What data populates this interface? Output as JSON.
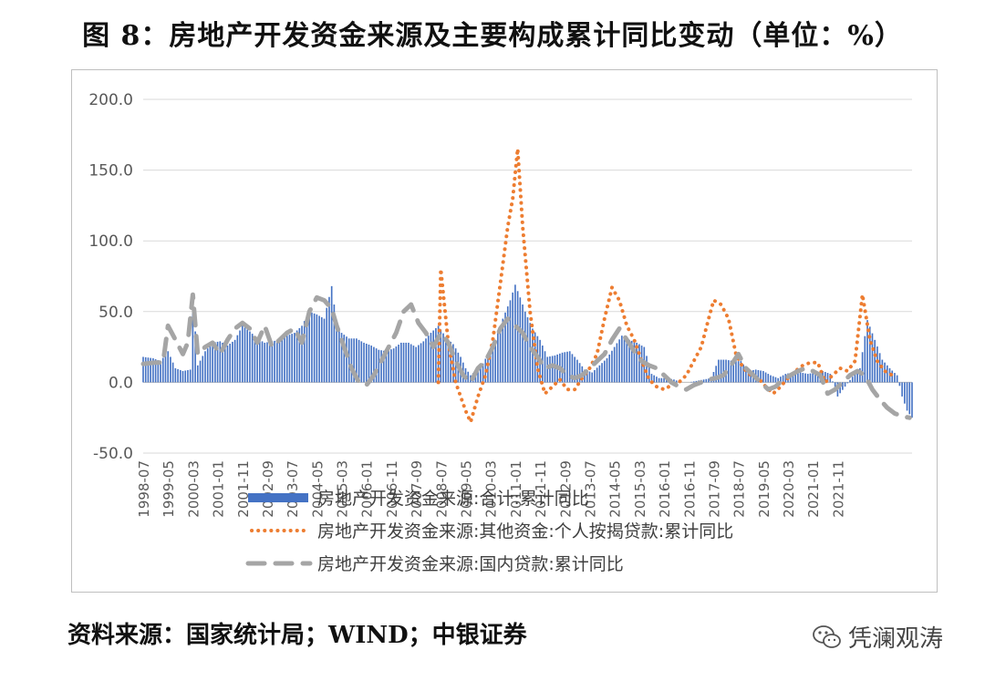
{
  "header": {
    "title": "图 8：房地产开发资金来源及主要构成累计同比变动（单位：%）"
  },
  "footer": {
    "source": "资料来源：国家统计局；WIND；中银证券",
    "watermark": "凭澜观涛"
  },
  "chart_data": {
    "type": "bar+line",
    "title": "",
    "xlabel": "",
    "ylabel": "",
    "ylim": [
      -50,
      200
    ],
    "yticks": [
      "200.0",
      "150.0",
      "100.0",
      "50.0",
      "0.0",
      "-50.0"
    ],
    "xticks": [
      "1998-07",
      "1999-05",
      "2000-03",
      "2001-01",
      "2001-11",
      "2002-09",
      "2003-07",
      "2004-05",
      "2005-03",
      "2006-01",
      "2006-11",
      "2007-09",
      "2008-07",
      "2009-05",
      "2010-03",
      "2011-01",
      "2011-11",
      "2012-09",
      "2013-07",
      "2014-05",
      "2015-03",
      "2016-01",
      "2016-11",
      "2017-09",
      "2018-07",
      "2019-05",
      "2020-03",
      "2021-01",
      "2021-11"
    ],
    "grid": true,
    "legend_position": "bottom",
    "series": [
      {
        "name": "房地产开发资金来源:合计:累计同比",
        "style": "bar",
        "color": "#4472C4",
        "points": [
          [
            0,
            18
          ],
          [
            4,
            17
          ],
          [
            7,
            15
          ],
          [
            10,
            22
          ],
          [
            13,
            10
          ],
          [
            16,
            8
          ],
          [
            19,
            9
          ],
          [
            20,
            60
          ],
          [
            22,
            12
          ],
          [
            25,
            22
          ],
          [
            28,
            28
          ],
          [
            31,
            29
          ],
          [
            34,
            26
          ],
          [
            37,
            30
          ],
          [
            40,
            40
          ],
          [
            43,
            36
          ],
          [
            46,
            31
          ],
          [
            49,
            28
          ],
          [
            52,
            29
          ],
          [
            55,
            30
          ],
          [
            58,
            33
          ],
          [
            61,
            35
          ],
          [
            64,
            40
          ],
          [
            67,
            50
          ],
          [
            70,
            48
          ],
          [
            73,
            45
          ],
          [
            76,
            68
          ],
          [
            78,
            42
          ],
          [
            80,
            35
          ],
          [
            83,
            31
          ],
          [
            86,
            31
          ],
          [
            89,
            28
          ],
          [
            92,
            26
          ],
          [
            95,
            23
          ],
          [
            98,
            22
          ],
          [
            101,
            24
          ],
          [
            104,
            28
          ],
          [
            107,
            28
          ],
          [
            110,
            25
          ],
          [
            113,
            29
          ],
          [
            116,
            35
          ],
          [
            119,
            40
          ],
          [
            122,
            32
          ],
          [
            125,
            27
          ],
          [
            128,
            18
          ],
          [
            130,
            10
          ],
          [
            132,
            5
          ],
          [
            134,
            8
          ],
          [
            136,
            10
          ],
          [
            139,
            20
          ],
          [
            142,
            30
          ],
          [
            145,
            45
          ],
          [
            148,
            58
          ],
          [
            150,
            69
          ],
          [
            152,
            60
          ],
          [
            154,
            50
          ],
          [
            157,
            38
          ],
          [
            160,
            30
          ],
          [
            163,
            18
          ],
          [
            166,
            19
          ],
          [
            169,
            21
          ],
          [
            172,
            22
          ],
          [
            175,
            16
          ],
          [
            178,
            9
          ],
          [
            181,
            7
          ],
          [
            184,
            12
          ],
          [
            187,
            17
          ],
          [
            190,
            25
          ],
          [
            193,
            33
          ],
          [
            196,
            30
          ],
          [
            199,
            28
          ],
          [
            202,
            25
          ],
          [
            205,
            6
          ],
          [
            208,
            3
          ],
          [
            211,
            3
          ],
          [
            214,
            2
          ],
          [
            217,
            0
          ],
          [
            220,
            0
          ],
          [
            223,
            1
          ],
          [
            226,
            2
          ],
          [
            229,
            3
          ],
          [
            232,
            16
          ],
          [
            235,
            16
          ],
          [
            238,
            15
          ],
          [
            241,
            15
          ],
          [
            244,
            8
          ],
          [
            247,
            9
          ],
          [
            250,
            8
          ],
          [
            253,
            5
          ],
          [
            256,
            3
          ],
          [
            259,
            6
          ],
          [
            262,
            7
          ],
          [
            265,
            7
          ],
          [
            268,
            6
          ],
          [
            271,
            7
          ],
          [
            274,
            8
          ],
          [
            277,
            6
          ],
          [
            280,
            -10
          ],
          [
            283,
            -3
          ],
          [
            286,
            4
          ],
          [
            289,
            10
          ],
          [
            292,
            44
          ],
          [
            295,
            30
          ],
          [
            298,
            16
          ],
          [
            301,
            10
          ],
          [
            304,
            5
          ],
          [
            306,
            -10
          ],
          [
            308,
            -20
          ],
          [
            310,
            -25
          ]
        ]
      },
      {
        "name": "房地产开发资金来源:其他资金:个人按揭贷款:累计同比",
        "style": "dotted",
        "color": "#ED7D31",
        "points": [
          [
            119,
            0
          ],
          [
            120,
            80
          ],
          [
            123,
            28
          ],
          [
            126,
            0
          ],
          [
            130,
            -20
          ],
          [
            132,
            -28
          ],
          [
            135,
            -10
          ],
          [
            138,
            5
          ],
          [
            141,
            30
          ],
          [
            144,
            70
          ],
          [
            147,
            110
          ],
          [
            149,
            130
          ],
          [
            151,
            165
          ],
          [
            153,
            110
          ],
          [
            156,
            50
          ],
          [
            159,
            10
          ],
          [
            162,
            -8
          ],
          [
            165,
            -3
          ],
          [
            168,
            2
          ],
          [
            171,
            -5
          ],
          [
            174,
            -5
          ],
          [
            177,
            3
          ],
          [
            180,
            10
          ],
          [
            183,
            20
          ],
          [
            186,
            45
          ],
          [
            189,
            67
          ],
          [
            192,
            58
          ],
          [
            195,
            40
          ],
          [
            198,
            30
          ],
          [
            201,
            15
          ],
          [
            204,
            2
          ],
          [
            207,
            -3
          ],
          [
            210,
            -5
          ],
          [
            213,
            -2
          ],
          [
            216,
            0
          ],
          [
            219,
            5
          ],
          [
            222,
            15
          ],
          [
            225,
            25
          ],
          [
            228,
            45
          ],
          [
            230,
            58
          ],
          [
            233,
            55
          ],
          [
            236,
            45
          ],
          [
            239,
            20
          ],
          [
            242,
            10
          ],
          [
            245,
            5
          ],
          [
            248,
            3
          ],
          [
            251,
            -3
          ],
          [
            254,
            -8
          ],
          [
            257,
            -3
          ],
          [
            260,
            3
          ],
          [
            263,
            8
          ],
          [
            266,
            12
          ],
          [
            269,
            14
          ],
          [
            272,
            14
          ],
          [
            275,
            0
          ],
          [
            278,
            5
          ],
          [
            281,
            10
          ],
          [
            284,
            8
          ],
          [
            287,
            15
          ],
          [
            290,
            62
          ],
          [
            293,
            30
          ],
          [
            296,
            15
          ],
          [
            299,
            8
          ],
          [
            302,
            5
          ]
        ]
      },
      {
        "name": "房地产开发资金来源:国内贷款:累计同比",
        "style": "dashed",
        "color": "#A5A5A5",
        "points": [
          [
            0,
            13
          ],
          [
            5,
            14
          ],
          [
            8,
            14
          ],
          [
            10,
            40
          ],
          [
            13,
            30
          ],
          [
            16,
            20
          ],
          [
            18,
            28
          ],
          [
            20,
            62
          ],
          [
            22,
            20
          ],
          [
            25,
            25
          ],
          [
            28,
            28
          ],
          [
            31,
            20
          ],
          [
            34,
            30
          ],
          [
            37,
            38
          ],
          [
            40,
            42
          ],
          [
            43,
            38
          ],
          [
            46,
            28
          ],
          [
            49,
            40
          ],
          [
            52,
            25
          ],
          [
            55,
            30
          ],
          [
            58,
            35
          ],
          [
            61,
            38
          ],
          [
            64,
            28
          ],
          [
            67,
            50
          ],
          [
            70,
            60
          ],
          [
            73,
            58
          ],
          [
            76,
            52
          ],
          [
            78,
            40
          ],
          [
            81,
            25
          ],
          [
            84,
            10
          ],
          [
            87,
            0
          ],
          [
            90,
            -2
          ],
          [
            93,
            5
          ],
          [
            96,
            15
          ],
          [
            99,
            25
          ],
          [
            102,
            35
          ],
          [
            105,
            50
          ],
          [
            108,
            55
          ],
          [
            111,
            42
          ],
          [
            114,
            35
          ],
          [
            117,
            25
          ],
          [
            120,
            35
          ],
          [
            123,
            28
          ],
          [
            126,
            15
          ],
          [
            129,
            5
          ],
          [
            132,
            0
          ],
          [
            135,
            10
          ],
          [
            138,
            15
          ],
          [
            141,
            25
          ],
          [
            144,
            38
          ],
          [
            147,
            45
          ],
          [
            150,
            40
          ],
          [
            153,
            35
          ],
          [
            156,
            25
          ],
          [
            159,
            18
          ],
          [
            162,
            10
          ],
          [
            165,
            12
          ],
          [
            168,
            10
          ],
          [
            171,
            5
          ],
          [
            174,
            3
          ],
          [
            177,
            5
          ],
          [
            180,
            10
          ],
          [
            183,
            15
          ],
          [
            186,
            20
          ],
          [
            189,
            30
          ],
          [
            192,
            38
          ],
          [
            195,
            30
          ],
          [
            198,
            22
          ],
          [
            201,
            15
          ],
          [
            204,
            12
          ],
          [
            207,
            10
          ],
          [
            210,
            5
          ],
          [
            213,
            0
          ],
          [
            216,
            -3
          ],
          [
            219,
            -5
          ],
          [
            222,
            -2
          ],
          [
            225,
            0
          ],
          [
            228,
            2
          ],
          [
            231,
            3
          ],
          [
            234,
            5
          ],
          [
            237,
            12
          ],
          [
            240,
            20
          ],
          [
            243,
            10
          ],
          [
            246,
            5
          ],
          [
            249,
            0
          ],
          [
            252,
            -5
          ],
          [
            255,
            -3
          ],
          [
            258,
            2
          ],
          [
            261,
            5
          ],
          [
            264,
            8
          ],
          [
            267,
            10
          ],
          [
            270,
            8
          ],
          [
            273,
            5
          ],
          [
            276,
            -8
          ],
          [
            279,
            -5
          ],
          [
            282,
            0
          ],
          [
            285,
            5
          ],
          [
            288,
            8
          ],
          [
            291,
            5
          ],
          [
            294,
            -5
          ],
          [
            297,
            -12
          ],
          [
            300,
            -18
          ],
          [
            303,
            -22
          ],
          [
            306,
            -24
          ],
          [
            309,
            -25
          ]
        ]
      }
    ]
  }
}
